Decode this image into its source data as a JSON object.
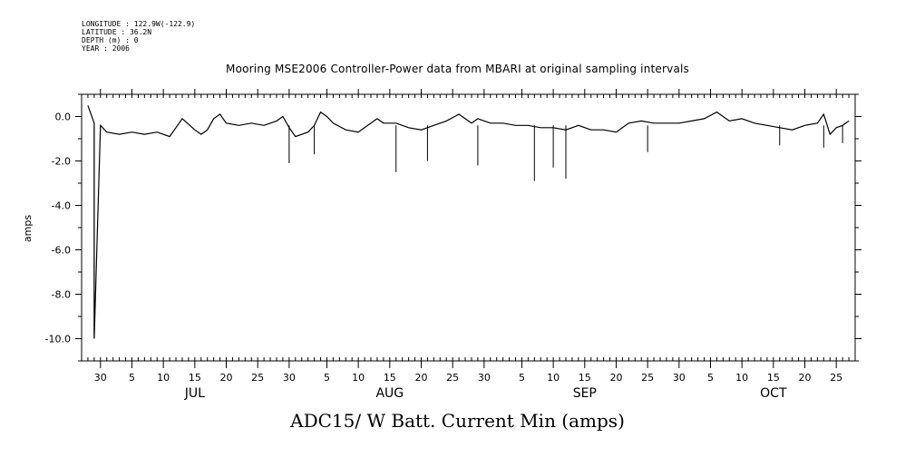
{
  "metadata": {
    "longitude": "LONGITUDE : 122.9W(-122.9)",
    "latitude": "LATITUDE : 36.2N",
    "depth": "DEPTH (m) : 0",
    "year": "YEAR : 2006"
  },
  "chart_data": {
    "type": "line",
    "title": "Mooring MSE2006 Controller-Power data from MBARI at original sampling intervals",
    "xlabel": "ADC15/ W Batt. Current Min (amps)",
    "ylabel": "amps",
    "xlim": [
      "2006-06-27",
      "2006-10-28"
    ],
    "ylim": [
      -11,
      1
    ],
    "y_ticks": [
      "-10.0",
      "-8.0",
      "-6.0",
      "-4.0",
      "-2.0",
      "0.0"
    ],
    "x_tick_days": [
      "30",
      "5",
      "10",
      "15",
      "20",
      "25",
      "30",
      "5",
      "10",
      "15",
      "20",
      "25",
      "30",
      "5",
      "10",
      "15",
      "20",
      "25",
      "30",
      "5",
      "10",
      "15",
      "20",
      "25"
    ],
    "x_tick_dates": [
      "2006-06-30",
      "2006-07-05",
      "2006-07-10",
      "2006-07-15",
      "2006-07-20",
      "2006-07-25",
      "2006-07-30",
      "2006-08-05",
      "2006-08-10",
      "2006-08-15",
      "2006-08-20",
      "2006-08-25",
      "2006-08-30",
      "2006-09-05",
      "2006-09-10",
      "2006-09-15",
      "2006-09-20",
      "2006-09-25",
      "2006-09-30",
      "2006-10-05",
      "2006-10-10",
      "2006-10-15",
      "2006-10-20",
      "2006-10-25"
    ],
    "months": [
      {
        "label": "JUL",
        "date": "2006-07-15"
      },
      {
        "label": "AUG",
        "date": "2006-08-15"
      },
      {
        "label": "SEP",
        "date": "2006-09-15"
      },
      {
        "label": "OCT",
        "date": "2006-10-15"
      }
    ],
    "series": [
      {
        "color": "#000000",
        "x": [
          "2006-06-28",
          "2006-06-29",
          "2006-06-29",
          "2006-06-30",
          "2006-07-01",
          "2006-07-03",
          "2006-07-05",
          "2006-07-07",
          "2006-07-09",
          "2006-07-11",
          "2006-07-12",
          "2006-07-13",
          "2006-07-15",
          "2006-07-16",
          "2006-07-17",
          "2006-07-18",
          "2006-07-19",
          "2006-07-20",
          "2006-07-22",
          "2006-07-24",
          "2006-07-26",
          "2006-07-28",
          "2006-07-29",
          "2006-07-30",
          "2006-07-31",
          "2006-08-02",
          "2006-08-03",
          "2006-08-04",
          "2006-08-05",
          "2006-08-06",
          "2006-08-08",
          "2006-08-10",
          "2006-08-12",
          "2006-08-13",
          "2006-08-14",
          "2006-08-16",
          "2006-08-18",
          "2006-08-20",
          "2006-08-22",
          "2006-08-24",
          "2006-08-26",
          "2006-08-28",
          "2006-08-29",
          "2006-08-31",
          "2006-09-02",
          "2006-09-04",
          "2006-09-06",
          "2006-09-08",
          "2006-09-10",
          "2006-09-12",
          "2006-09-14",
          "2006-09-16",
          "2006-09-18",
          "2006-09-20",
          "2006-09-22",
          "2006-09-24",
          "2006-09-26",
          "2006-09-28",
          "2006-09-30",
          "2006-10-02",
          "2006-10-04",
          "2006-10-06",
          "2006-10-08",
          "2006-10-10",
          "2006-10-12",
          "2006-10-14",
          "2006-10-16",
          "2006-10-18",
          "2006-10-20",
          "2006-10-22",
          "2006-10-23",
          "2006-10-24",
          "2006-10-25",
          "2006-10-26",
          "2006-10-27"
        ],
        "y": [
          0.5,
          -0.3,
          -10.0,
          -0.4,
          -0.7,
          -0.8,
          -0.7,
          -0.8,
          -0.7,
          -0.9,
          -0.5,
          -0.1,
          -0.6,
          -0.8,
          -0.6,
          -0.1,
          0.1,
          -0.3,
          -0.4,
          -0.3,
          -0.4,
          -0.2,
          0.0,
          -0.5,
          -0.9,
          -0.7,
          -0.4,
          0.2,
          0.0,
          -0.3,
          -0.6,
          -0.7,
          -0.3,
          -0.1,
          -0.3,
          -0.3,
          -0.5,
          -0.6,
          -0.4,
          -0.2,
          0.1,
          -0.3,
          -0.1,
          -0.3,
          -0.3,
          -0.4,
          -0.4,
          -0.5,
          -0.5,
          -0.6,
          -0.4,
          -0.6,
          -0.6,
          -0.7,
          -0.3,
          -0.2,
          -0.3,
          -0.3,
          -0.3,
          -0.2,
          -0.1,
          0.2,
          -0.2,
          -0.1,
          -0.3,
          -0.4,
          -0.5,
          -0.6,
          -0.4,
          -0.3,
          0.1,
          -0.8,
          -0.5,
          -0.4,
          -0.2
        ]
      }
    ],
    "spikes": [
      {
        "x": "2006-06-29",
        "y": -10.0
      },
      {
        "x": "2006-07-30",
        "y": -2.1
      },
      {
        "x": "2006-08-03",
        "y": -1.7
      },
      {
        "x": "2006-08-16",
        "y": -2.5
      },
      {
        "x": "2006-08-21",
        "y": -2.0
      },
      {
        "x": "2006-08-29",
        "y": -2.2
      },
      {
        "x": "2006-09-07",
        "y": -2.9
      },
      {
        "x": "2006-09-10",
        "y": -2.3
      },
      {
        "x": "2006-09-12",
        "y": -2.8
      },
      {
        "x": "2006-09-25",
        "y": -1.6
      },
      {
        "x": "2006-10-16",
        "y": -1.3
      },
      {
        "x": "2006-10-23",
        "y": -1.4
      },
      {
        "x": "2006-10-26",
        "y": -1.2
      }
    ],
    "grid": false
  }
}
